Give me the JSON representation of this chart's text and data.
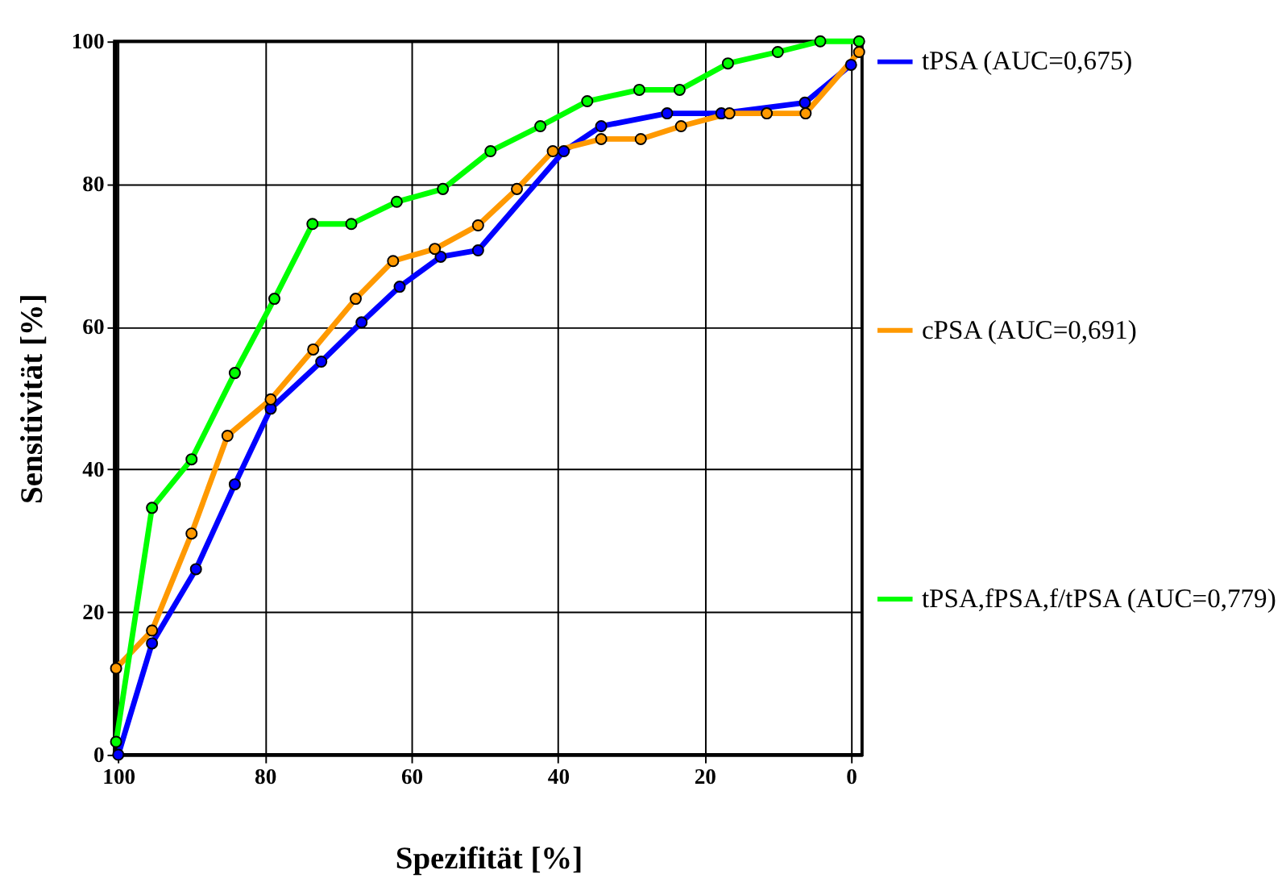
{
  "chart_data": {
    "type": "line",
    "xlabel": "Spezifität [%]",
    "ylabel": "Sensitivität [%]",
    "xlim": [
      100.5,
      -1.5
    ],
    "xticks": [
      100,
      80,
      60,
      40,
      20,
      0
    ],
    "ylim": [
      0,
      100
    ],
    "yticks": [
      0,
      20,
      40,
      60,
      80,
      100
    ],
    "grid": true,
    "legend": "right",
    "marker": "circle",
    "line_style": "solid",
    "series": [
      {
        "name": "tPSA  (AUC=0,675)",
        "color": "#0000ff",
        "x": [
          100,
          95.4,
          89.4,
          84.1,
          79.2,
          72.3,
          66.8,
          61.6,
          56.0,
          50.9,
          39.2,
          34.1,
          25.1,
          17.7,
          6.3,
          0
        ],
        "values": [
          0,
          15.6,
          26,
          37.9,
          48.5,
          55.1,
          60.6,
          65.6,
          69.8,
          70.7,
          84.6,
          88.1,
          89.9,
          89.9,
          91.4,
          96.7
        ]
      },
      {
        "name": "cPSA (AUC=0,691)",
        "color": "#ff9900",
        "x": [
          100.3,
          95.4,
          90,
          85.1,
          79.2,
          73.4,
          67.6,
          62.5,
          56.8,
          50.9,
          45.6,
          40.7,
          34.1,
          28.7,
          23.2,
          16.6,
          11.5,
          6.2,
          -1.1
        ],
        "values": [
          12.1,
          17.4,
          31,
          44.7,
          49.8,
          56.8,
          63.9,
          69.2,
          70.9,
          74.2,
          79.3,
          84.6,
          86.3,
          86.3,
          88.1,
          89.9,
          89.9,
          89.9,
          98.5
        ]
      },
      {
        "name": "tPSA,fPSA,f/tPSA (AUC=0,779)",
        "color": "#00ff00",
        "x": [
          100.3,
          95.4,
          90,
          84.1,
          78.7,
          73.5,
          68.2,
          62,
          55.7,
          49.2,
          42.4,
          36.0,
          28.9,
          23.4,
          16.8,
          10,
          4.2,
          -1.1
        ],
        "values": [
          1.8,
          34.6,
          41.4,
          53.5,
          63.9,
          74.4,
          74.4,
          77.5,
          79.3,
          84.6,
          88.1,
          91.6,
          93.2,
          93.2,
          96.9,
          98.5,
          100,
          100
        ]
      }
    ]
  }
}
